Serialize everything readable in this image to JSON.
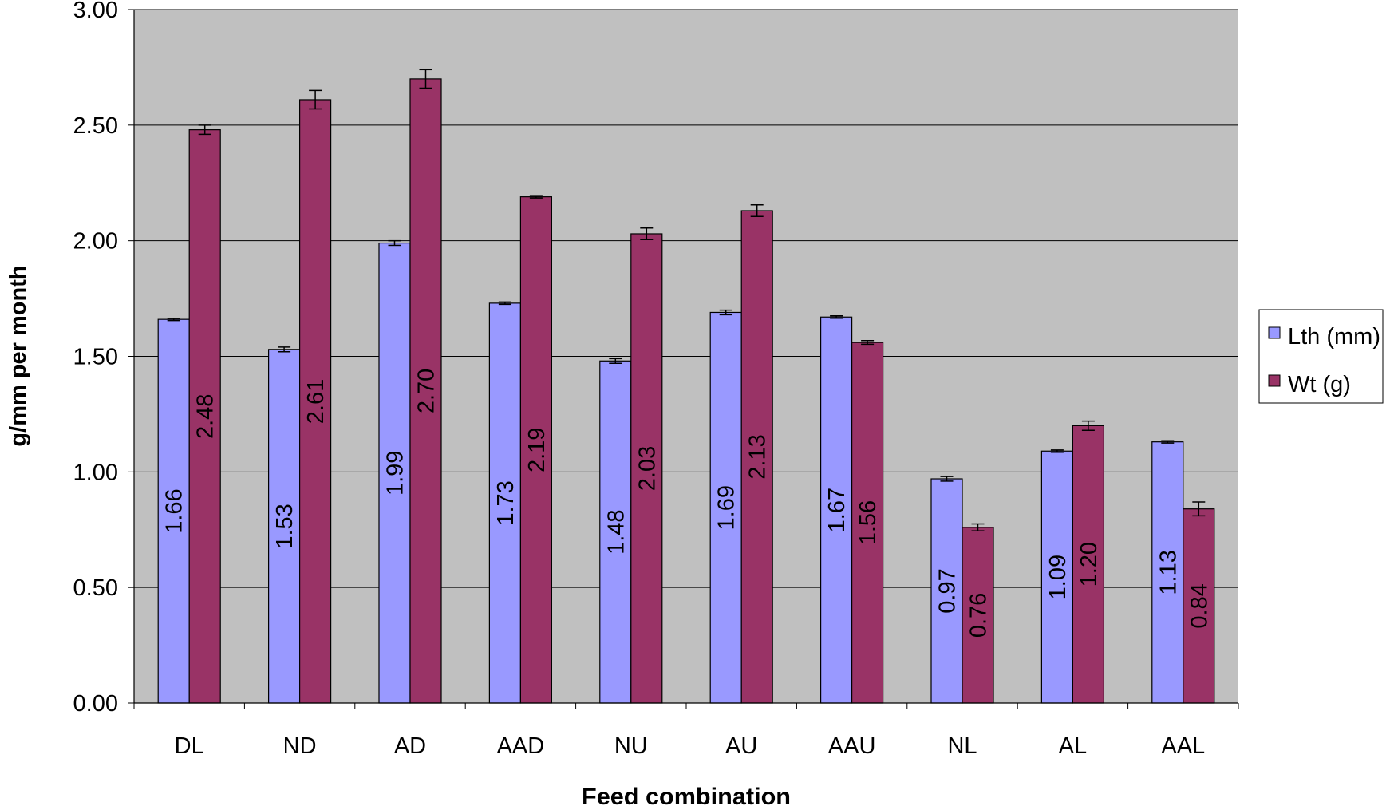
{
  "chart_data": {
    "type": "bar",
    "title": "",
    "xlabel": "Feed combination",
    "ylabel": "g/mm per month",
    "ylim": [
      0,
      3
    ],
    "yticks": [
      "0.00",
      "0.50",
      "1.00",
      "1.50",
      "2.00",
      "2.50",
      "3.00"
    ],
    "grid": true,
    "legend_position": "right",
    "plot_background": "#C0C0C0",
    "categories": [
      "DL",
      "ND",
      "AD",
      "AAD",
      "NU",
      "AU",
      "AAU",
      "NL",
      "AL",
      "AAL"
    ],
    "series": [
      {
        "name": "Lth (mm)",
        "color": "#9999FF",
        "values": [
          1.66,
          1.53,
          1.99,
          1.73,
          1.48,
          1.69,
          1.67,
          0.97,
          1.09,
          1.13
        ],
        "labels": [
          "1.66",
          "1.53",
          "1.99",
          "1.73",
          "1.48",
          "1.69",
          "1.67",
          "0.97",
          "1.09",
          "1.13"
        ],
        "errors": [
          0.005,
          0.01,
          0.01,
          0.005,
          0.01,
          0.01,
          0.005,
          0.01,
          0.005,
          0.005
        ]
      },
      {
        "name": "Wt (g)",
        "color": "#993366",
        "values": [
          2.48,
          2.61,
          2.7,
          2.19,
          2.03,
          2.13,
          1.56,
          0.76,
          1.2,
          0.84
        ],
        "labels": [
          "2.48",
          "2.61",
          "2.70",
          "2.19",
          "2.03",
          "2.13",
          "1.56",
          "0.76",
          "1.20",
          "0.84"
        ],
        "errors": [
          0.02,
          0.04,
          0.04,
          0.005,
          0.025,
          0.025,
          0.008,
          0.015,
          0.02,
          0.03
        ]
      }
    ]
  }
}
